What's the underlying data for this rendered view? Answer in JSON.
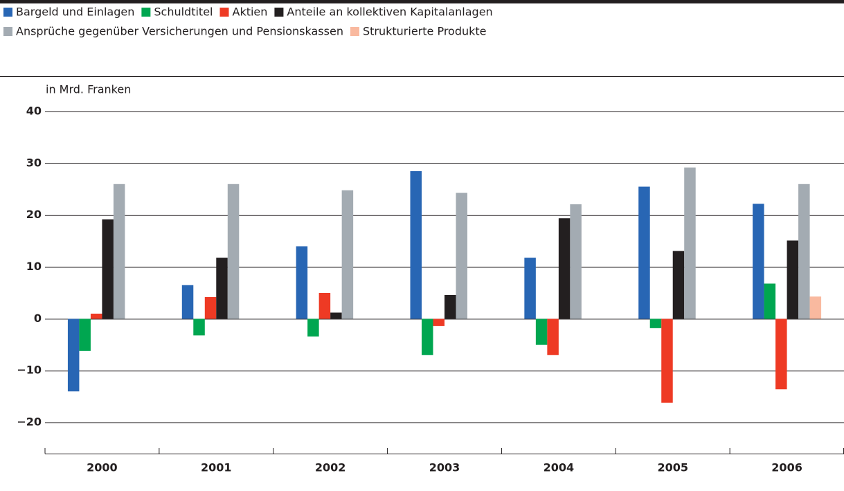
{
  "chart_data": {
    "type": "bar",
    "y_axis_label": "in Mrd. Franken",
    "categories": [
      "2000",
      "2001",
      "2002",
      "2003",
      "2004",
      "2005",
      "2006"
    ],
    "series": [
      {
        "name": "Bargeld und Einlagen",
        "color": "#2866b4",
        "values": [
          -14,
          6.5,
          14,
          28.5,
          11.8,
          25.5,
          22.2
        ]
      },
      {
        "name": "Schuldtitel",
        "color": "#00a650",
        "values": [
          -6.2,
          -3.2,
          -3.4,
          -7,
          -5,
          -1.8,
          6.8
        ]
      },
      {
        "name": "Aktien",
        "color": "#ee3a24",
        "values": [
          1,
          4.2,
          5,
          -1.4,
          -7,
          -16.2,
          -13.6
        ]
      },
      {
        "name": "Anteile an kollektiven Kapitalanlagen",
        "color": "#231f20",
        "values": [
          19.2,
          11.8,
          1.2,
          4.6,
          19.4,
          13.1,
          15.1
        ]
      },
      {
        "name": "Ansprüche gegenüber Versicherungen und Pensionskassen",
        "color": "#a3abb2",
        "values": [
          26,
          26,
          24.8,
          24.3,
          22.1,
          29.2,
          26
        ]
      },
      {
        "name": "Strukturierte Produkte",
        "color": "#f9b99f",
        "values": [
          null,
          null,
          null,
          null,
          null,
          null,
          4.3
        ]
      }
    ],
    "ylim": [
      -26,
      40
    ],
    "yticks": [
      {
        "value": -20,
        "label": "−20"
      },
      {
        "value": -10,
        "label": "−10"
      },
      0,
      10,
      20,
      30,
      40
    ],
    "grid": true
  }
}
